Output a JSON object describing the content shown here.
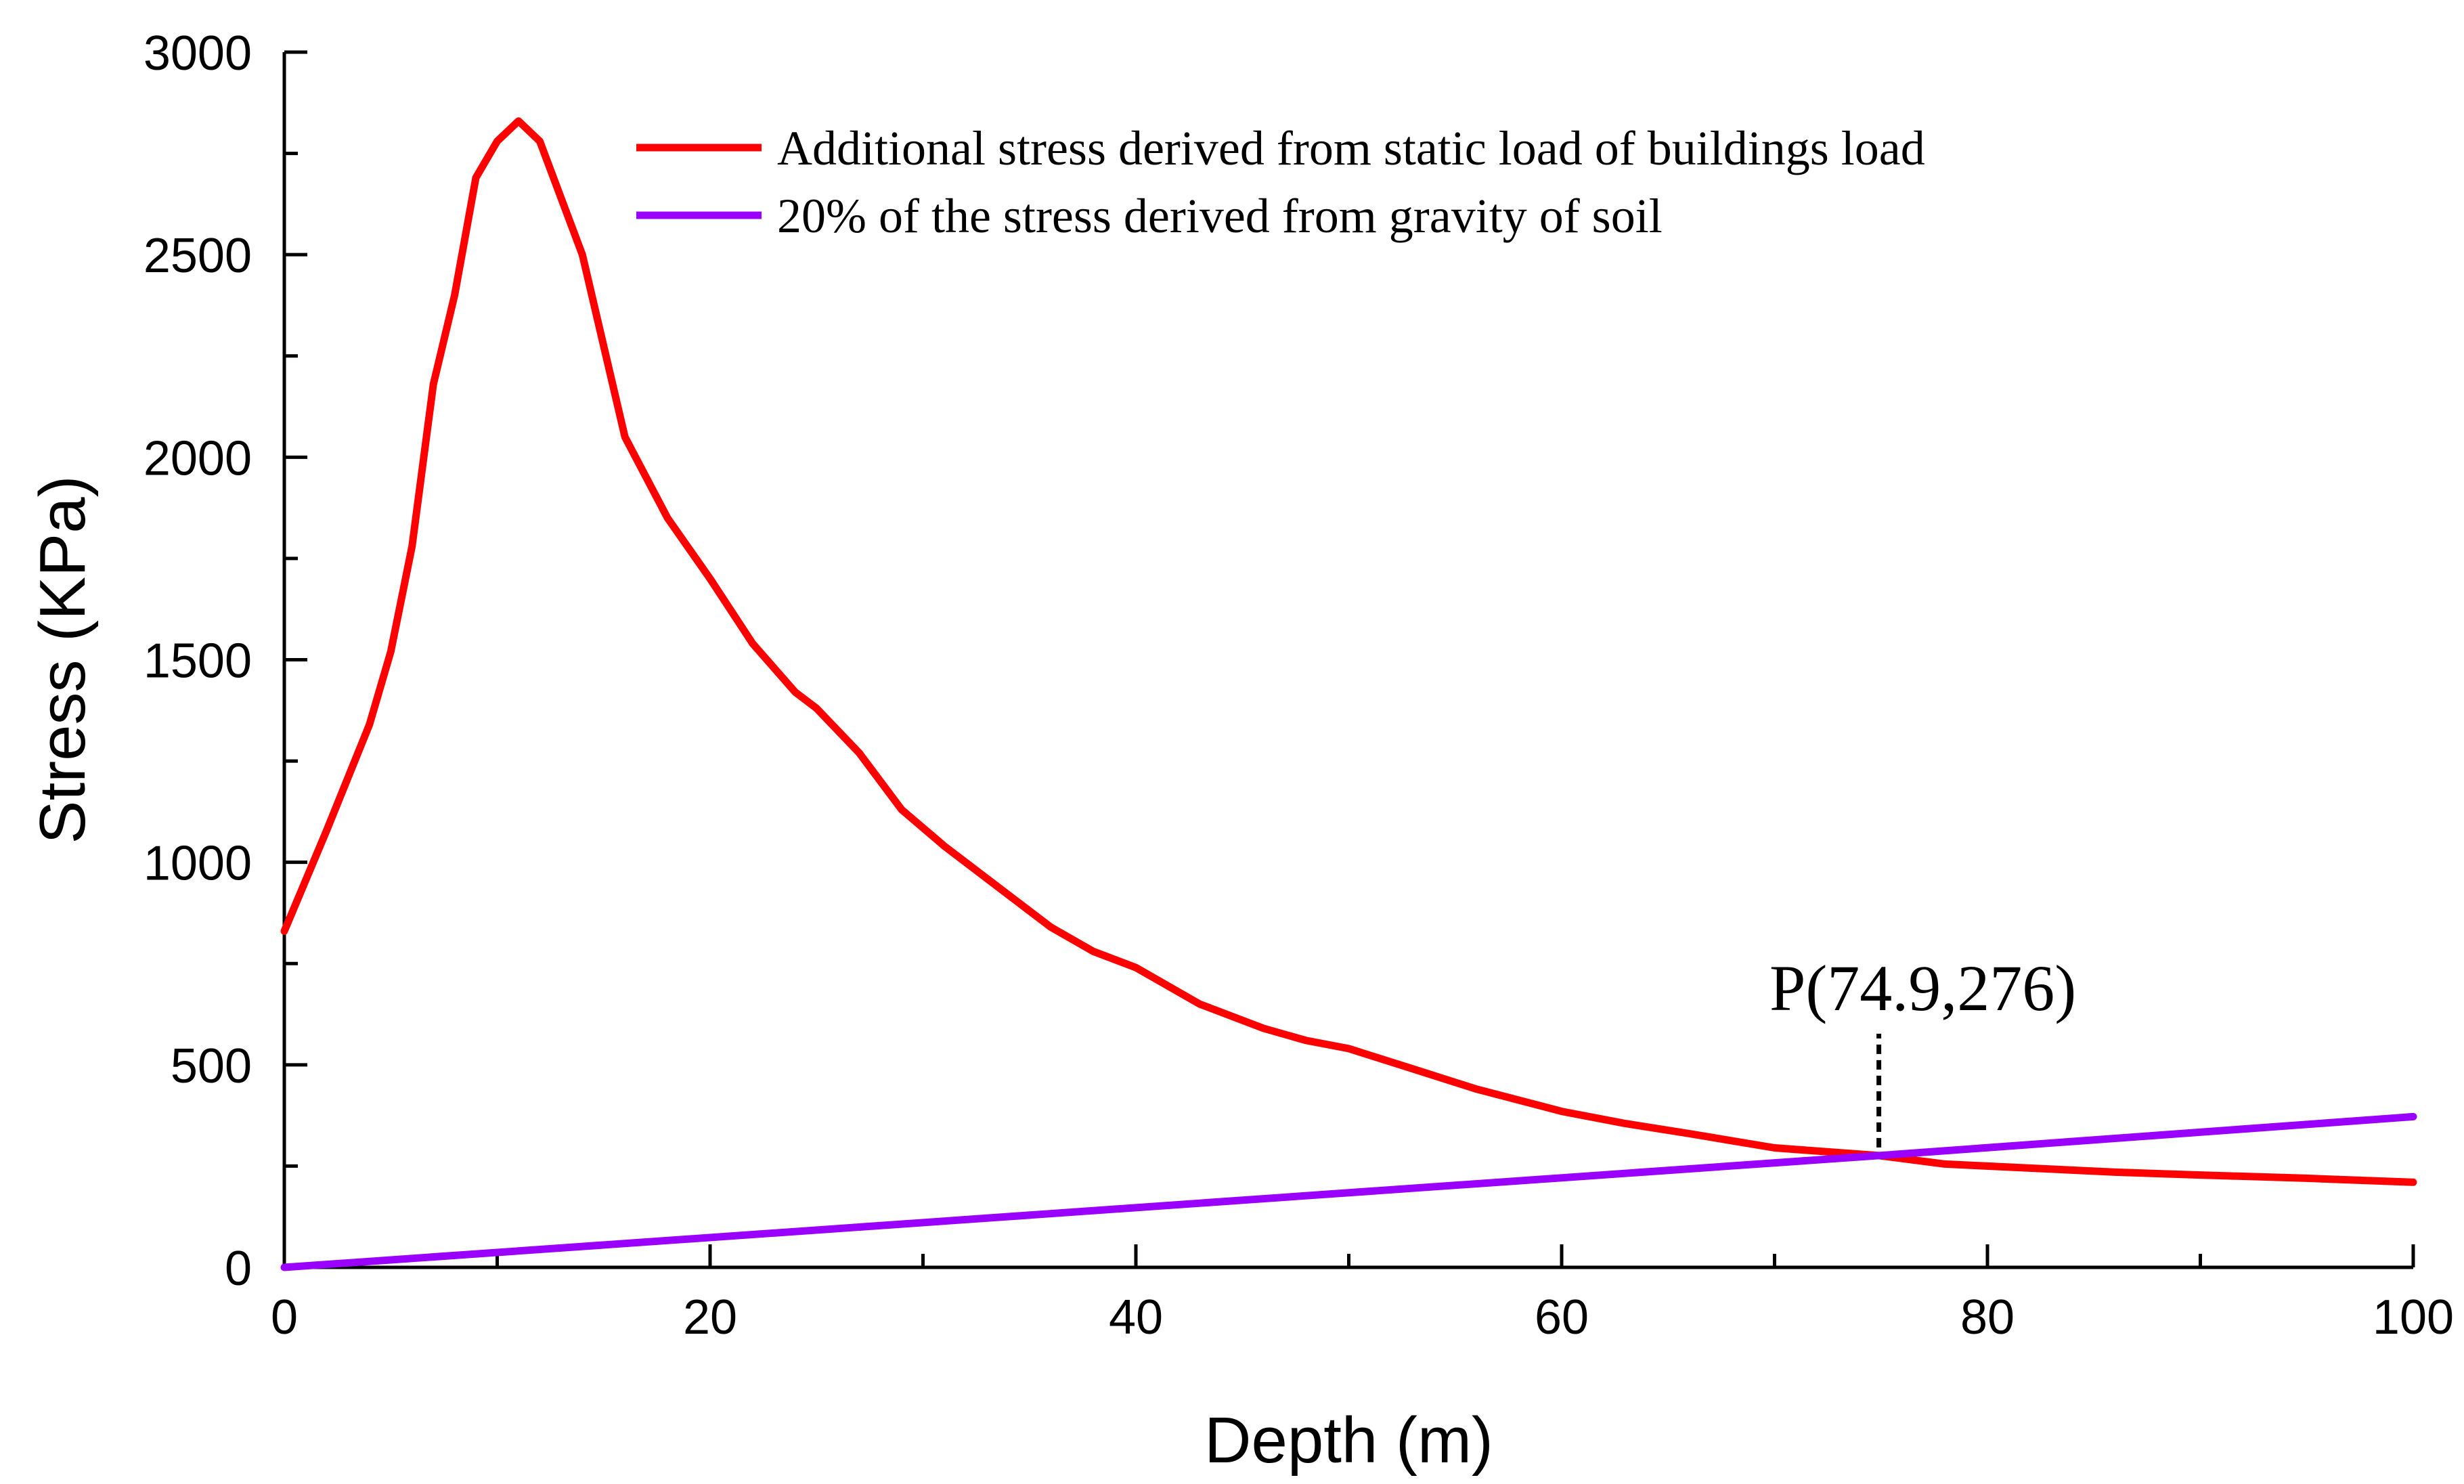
{
  "chart_data": {
    "type": "line",
    "title": "",
    "xlabel": "Depth (m)",
    "ylabel": "Stress (KPa)",
    "xlim": [
      0,
      100
    ],
    "ylim": [
      0,
      3000
    ],
    "grid": false,
    "legend_position": "top-center",
    "x_ticks": [
      0,
      20,
      40,
      60,
      80,
      100
    ],
    "y_ticks": [
      0,
      500,
      1000,
      1500,
      2000,
      2500,
      3000
    ],
    "series": [
      {
        "name": "Additional stress derived from static load of buildings load",
        "color": "#ff0000",
        "points": [
          [
            0,
            830
          ],
          [
            2,
            1080
          ],
          [
            4,
            1340
          ],
          [
            5,
            1520
          ],
          [
            6,
            1780
          ],
          [
            7,
            2180
          ],
          [
            8,
            2400
          ],
          [
            9,
            2690
          ],
          [
            10,
            2780
          ],
          [
            11,
            2830
          ],
          [
            12,
            2780
          ],
          [
            14,
            2500
          ],
          [
            16,
            2050
          ],
          [
            18,
            1850
          ],
          [
            20,
            1700
          ],
          [
            22,
            1540
          ],
          [
            24,
            1420
          ],
          [
            25,
            1380
          ],
          [
            27,
            1270
          ],
          [
            29,
            1130
          ],
          [
            31,
            1040
          ],
          [
            33,
            960
          ],
          [
            36,
            840
          ],
          [
            38,
            780
          ],
          [
            40,
            740
          ],
          [
            43,
            650
          ],
          [
            46,
            590
          ],
          [
            48,
            560
          ],
          [
            50,
            540
          ],
          [
            53,
            490
          ],
          [
            56,
            440
          ],
          [
            60,
            385
          ],
          [
            63,
            355
          ],
          [
            66,
            330
          ],
          [
            70,
            295
          ],
          [
            74.9,
            276
          ],
          [
            78,
            255
          ],
          [
            82,
            245
          ],
          [
            86,
            235
          ],
          [
            90,
            228
          ],
          [
            95,
            220
          ],
          [
            100,
            210
          ]
        ]
      },
      {
        "name": "20% of the stress derived from gravity of soil",
        "color": "#9a00ff",
        "points": [
          [
            0,
            0
          ],
          [
            74.9,
            276
          ],
          [
            100,
            372
          ]
        ]
      }
    ],
    "annotations": [
      {
        "text": "P(74.9,276)",
        "x": 74.9,
        "y": 276
      }
    ]
  }
}
